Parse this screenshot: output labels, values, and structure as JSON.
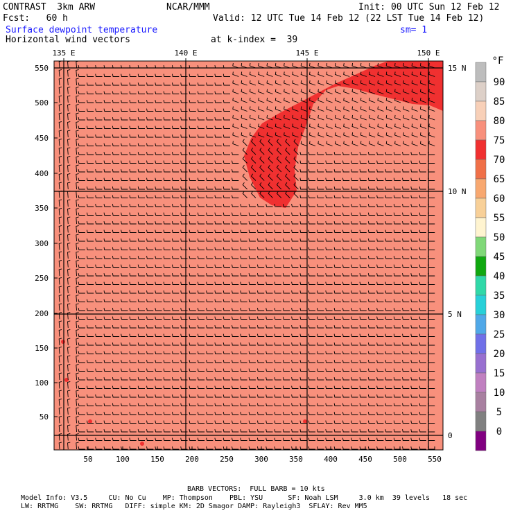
{
  "header": {
    "model": "CONTRAST  3km ARW",
    "org": "NCAR/MMM",
    "init": "Init: 00 UTC Sun 12 Feb 12",
    "fcst": "Fcst:   60 h",
    "valid": "Valid: 12 UTC Tue 14 Feb 12 (22 LST Tue 14 Feb 12)",
    "field": "Surface dewpoint temperature",
    "sm": "sm= 1",
    "vectors": "Horizontal wind vectors",
    "kindex": "at k-index =  39"
  },
  "axes": {
    "lon_labels": [
      "135 E",
      "140 E",
      "145 E",
      "150 E"
    ],
    "lat_labels": [
      "15 N",
      "10 N",
      "5 N",
      "0"
    ],
    "y_ticks": [
      "550",
      "500",
      "450",
      "400",
      "350",
      "300",
      "250",
      "200",
      "150",
      "100",
      "50"
    ],
    "x_ticks": [
      "50",
      "100",
      "150",
      "200",
      "250",
      "300",
      "350",
      "400",
      "450",
      "500",
      "550"
    ]
  },
  "legend": {
    "unit": "°F",
    "levels": [
      "90",
      "85",
      "80",
      "75",
      "70",
      "65",
      "60",
      "55",
      "50",
      "45",
      "40",
      "35",
      "30",
      "25",
      "20",
      "15",
      "10",
      "5",
      "0"
    ],
    "colors": [
      "#bdbdbd",
      "#ddd0c8",
      "#f8d0b8",
      "#f8907c",
      "#f03030",
      "#f07048",
      "#f8a870",
      "#f8d098",
      "#fff4d0",
      "#80d878",
      "#10a810",
      "#30d8a8",
      "#28d0d8",
      "#50a8e8",
      "#7070e8",
      "#9870d0",
      "#c080c0",
      "#a880a0",
      "#808080",
      "#800080"
    ]
  },
  "footer": {
    "barb": "BARB VECTORS:  FULL BARB = 10 kts",
    "line1": "Model Info: V3.5     CU: No Cu    MP: Thompson    PBL: YSU      SF: Noah LSM     3.0 km  39 levels   18 sec",
    "line2": "LW: RRTMG    SW: RRTMG   DIFF: simple KM: 2D Smagor DAMP: Rayleigh3  SFLAY: Rev MM5"
  },
  "field_colors": {
    "background": "#f8907c",
    "high": "#f03030"
  }
}
